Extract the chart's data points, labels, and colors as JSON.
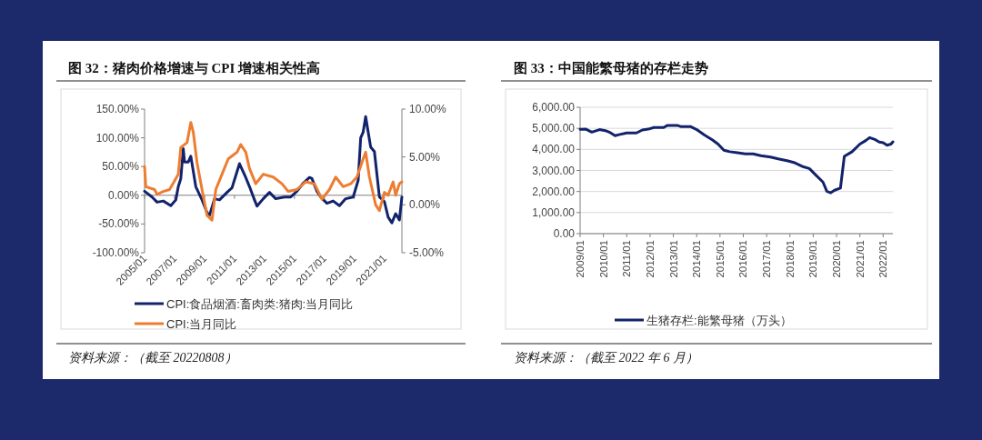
{
  "chart_data": [
    {
      "type": "line",
      "title": "图 32：猪肉价格增速与 CPI 增速相关性高",
      "legend": "bottom",
      "xlim": [
        "2005-01",
        "2022-03"
      ],
      "xticks": [
        {
          "value": "2005-01",
          "label": "2005/01"
        },
        {
          "value": "2007-01",
          "label": "2007/01"
        },
        {
          "value": "2009-01",
          "label": "2009/01"
        },
        {
          "value": "2011-01",
          "label": "2011/01"
        },
        {
          "value": "2013-01",
          "label": "2013/01"
        },
        {
          "value": "2015-01",
          "label": "2015/01"
        },
        {
          "value": "2017-01",
          "label": "2017/01"
        },
        {
          "value": "2019-01",
          "label": "2019/01"
        },
        {
          "value": "2021-01",
          "label": "2021/01"
        }
      ],
      "ylim": [
        -100,
        150
      ],
      "yticks": [
        {
          "value": -100,
          "label": "-100.00%"
        },
        {
          "value": -50,
          "label": "-50.00%"
        },
        {
          "value": 0,
          "label": "0.00%"
        },
        {
          "value": 50,
          "label": "50.00%"
        },
        {
          "value": 100,
          "label": "100.00%"
        },
        {
          "value": 150,
          "label": "150.00%"
        }
      ],
      "y2lim": [
        -5,
        10
      ],
      "y2ticks": [
        {
          "value": -5,
          "label": "-5.00%"
        },
        {
          "value": 0,
          "label": "0.00%"
        },
        {
          "value": 5,
          "label": "5.00%"
        },
        {
          "value": 10,
          "label": "10.00%"
        }
      ],
      "series": [
        {
          "name": "CPI:食品烟酒:畜肉类:猪肉:当月同比",
          "color": "#12236b",
          "x": [
            "2005-01",
            "2005-07",
            "2005-11",
            "2006-04",
            "2006-10",
            "2007-02",
            "2007-04",
            "2007-06",
            "2007-08",
            "2007-09",
            "2007-12",
            "2008-02",
            "2008-06",
            "2008-11",
            "2009-03",
            "2009-05",
            "2009-09",
            "2010-01",
            "2010-07",
            "2010-11",
            "2011-05",
            "2011-10",
            "2012-01",
            "2012-05",
            "2012-07",
            "2012-12",
            "2013-05",
            "2013-10",
            "2014-05",
            "2014-10",
            "2015-03",
            "2015-08",
            "2016-01",
            "2016-03",
            "2016-07",
            "2016-10",
            "2017-03",
            "2017-08",
            "2018-01",
            "2018-06",
            "2018-12",
            "2019-04",
            "2019-06",
            "2019-08",
            "2019-10",
            "2019-12",
            "2020-02",
            "2020-05",
            "2020-09",
            "2021-01",
            "2021-04",
            "2021-07",
            "2021-10",
            "2022-01",
            "2022-03"
          ],
          "values": [
            7,
            -3,
            -12,
            -10,
            -18,
            -8,
            15,
            29,
            81,
            58,
            58,
            68,
            15,
            -8,
            -30,
            -35,
            -6,
            -8,
            5,
            13,
            55,
            31,
            15,
            -8,
            -19,
            -6,
            5,
            -6,
            -3,
            -3,
            7,
            21,
            31,
            29,
            7,
            -3,
            -14,
            -10,
            -18,
            -6,
            -3,
            26,
            100,
            110,
            137,
            110,
            84,
            76,
            -3,
            -11,
            -38,
            -48,
            -32,
            -43,
            -3
          ]
        },
        {
          "name": "CPI:当月同比",
          "color": "#ed7d31",
          "axis": "y2",
          "x": [
            "2005-01",
            "2005-02",
            "2005-09",
            "2005-11",
            "2006-04",
            "2006-09",
            "2007-01",
            "2007-04",
            "2007-06",
            "2007-11",
            "2008-02",
            "2008-04",
            "2008-07",
            "2008-11",
            "2009-03",
            "2009-07",
            "2009-10",
            "2010-03",
            "2010-08",
            "2011-03",
            "2011-06",
            "2011-10",
            "2012-01",
            "2012-06",
            "2012-12",
            "2013-08",
            "2014-03",
            "2014-08",
            "2015-03",
            "2015-10",
            "2016-05",
            "2016-11",
            "2017-05",
            "2017-10",
            "2018-04",
            "2018-10",
            "2019-03",
            "2019-08",
            "2019-10",
            "2020-01",
            "2020-06",
            "2020-09",
            "2021-01",
            "2021-04",
            "2021-08",
            "2021-10",
            "2022-01",
            "2022-03"
          ],
          "values": [
            4.0,
            1.9,
            1.6,
            1.1,
            1.4,
            1.6,
            2.5,
            3.2,
            6.0,
            6.5,
            8.6,
            7.6,
            4.4,
            1.6,
            -1.1,
            -1.6,
            1.6,
            3.2,
            4.8,
            5.5,
            6.3,
            5.5,
            3.8,
            2.2,
            3.2,
            2.9,
            2.2,
            1.4,
            1.6,
            2.4,
            2.2,
            0.6,
            1.6,
            2.9,
            1.9,
            2.2,
            2.9,
            4.8,
            5.5,
            2.9,
            0.0,
            -0.6,
            1.3,
            1.0,
            2.4,
            1.0,
            2.2,
            2.4
          ]
        }
      ],
      "annotations": [
        "资料来源：（截至 20220808）"
      ]
    },
    {
      "type": "line",
      "title": "图 33：中国能繁母猪的存栏走势",
      "legend": "bottom",
      "grid": "y",
      "xlim": [
        "2009-01",
        "2022-06"
      ],
      "xticks": [
        {
          "value": "2009-01",
          "label": "2009/01"
        },
        {
          "value": "2010-01",
          "label": "2010/01"
        },
        {
          "value": "2011-01",
          "label": "2011/01"
        },
        {
          "value": "2012-01",
          "label": "2012/01"
        },
        {
          "value": "2013-01",
          "label": "2013/01"
        },
        {
          "value": "2014-01",
          "label": "2014/01"
        },
        {
          "value": "2015-01",
          "label": "2015/01"
        },
        {
          "value": "2016-01",
          "label": "2016/01"
        },
        {
          "value": "2017-01",
          "label": "2017/01"
        },
        {
          "value": "2018-01",
          "label": "2018/01"
        },
        {
          "value": "2019-01",
          "label": "2019/01"
        },
        {
          "value": "2020-01",
          "label": "2020/01"
        },
        {
          "value": "2021-01",
          "label": "2021/01"
        },
        {
          "value": "2022-01",
          "label": "2022/01"
        }
      ],
      "ylim": [
        0,
        6000
      ],
      "yticks": [
        {
          "value": 0,
          "label": "0.00"
        },
        {
          "value": 1000,
          "label": "1,000.00"
        },
        {
          "value": 2000,
          "label": "2,000.00"
        },
        {
          "value": 3000,
          "label": "3,000.00"
        },
        {
          "value": 4000,
          "label": "4,000.00"
        },
        {
          "value": 5000,
          "label": "5,000.00"
        },
        {
          "value": 6000,
          "label": "6,000.00"
        }
      ],
      "series": [
        {
          "name": "生猪存栏:能繁母猪（万头）",
          "color": "#12236b",
          "x": [
            "2009-01",
            "2009-04",
            "2009-07",
            "2009-11",
            "2010-02",
            "2010-04",
            "2010-07",
            "2010-09",
            "2011-01",
            "2011-06",
            "2011-09",
            "2011-12",
            "2012-03",
            "2012-08",
            "2012-10",
            "2013-03",
            "2013-05",
            "2013-10",
            "2014-01",
            "2014-05",
            "2014-09",
            "2014-12",
            "2015-03",
            "2015-06",
            "2015-10",
            "2016-02",
            "2016-06",
            "2016-10",
            "2017-03",
            "2017-07",
            "2017-12",
            "2018-03",
            "2018-08",
            "2018-11",
            "2019-02",
            "2019-06",
            "2019-08",
            "2019-10",
            "2019-12",
            "2020-03",
            "2020-05",
            "2020-09",
            "2021-01",
            "2021-04",
            "2021-06",
            "2021-09",
            "2021-11",
            "2022-01",
            "2022-03",
            "2022-05",
            "2022-06"
          ],
          "values": [
            4950,
            4960,
            4820,
            4940,
            4890,
            4820,
            4650,
            4700,
            4780,
            4780,
            4920,
            4960,
            5040,
            5040,
            5140,
            5140,
            5080,
            5080,
            4940,
            4680,
            4460,
            4250,
            3960,
            3890,
            3840,
            3790,
            3790,
            3700,
            3640,
            3550,
            3450,
            3380,
            3170,
            3090,
            2810,
            2450,
            2010,
            1940,
            2060,
            2160,
            3670,
            3890,
            4250,
            4420,
            4560,
            4460,
            4350,
            4320,
            4200,
            4250,
            4360
          ]
        }
      ],
      "annotations": [
        "资料来源：（截至 2022 年 6 月）"
      ]
    }
  ]
}
